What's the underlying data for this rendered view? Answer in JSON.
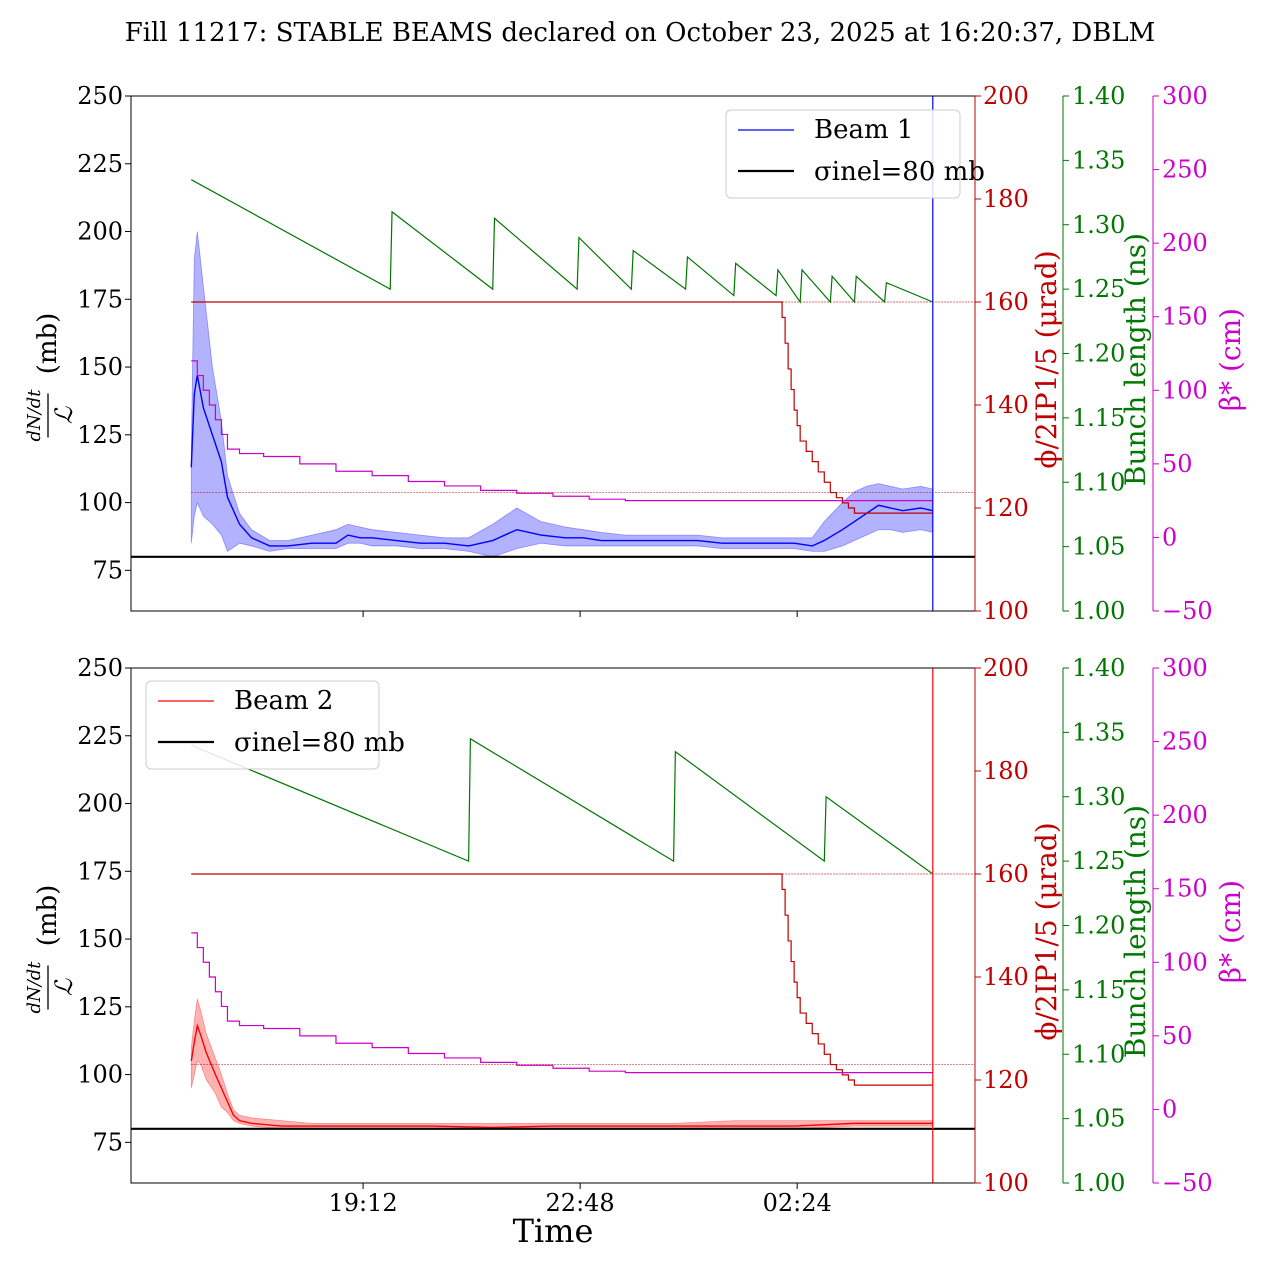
{
  "title": "Fill 11217: STABLE BEAMS declared on October 23, 2025 at 16:20:37, DBLM",
  "xlabel": "Time",
  "x_tick_labels": [
    "19:12",
    "22:48",
    "02:24"
  ],
  "colors": {
    "beam1": "#0000ff",
    "beam2": "#ff0000",
    "sigma": "#000000",
    "crossing_angle": "#c00000",
    "bunch_length": "#007700",
    "beta_star": "#cc00cc"
  },
  "chart_data": [
    {
      "type": "line",
      "panel": "top",
      "x_unit": "hours since 16:20:37",
      "y_left": {
        "label_num": "dN/dt",
        "label_den": "ℒ",
        "unit": "(mb)",
        "ticks": [
          "75",
          "100",
          "125",
          "150",
          "175",
          "200",
          "225",
          "250"
        ],
        "ylim": [
          60,
          250
        ]
      },
      "y_right_1": {
        "label": "ϕ/2IP1/5 (μrad)",
        "ticks": [
          "100",
          "120",
          "140",
          "160",
          "180",
          "200"
        ],
        "ylim": [
          100,
          200
        ]
      },
      "y_right_2": {
        "label": "Bunch length (ns)",
        "ticks": [
          "1.00",
          "1.05",
          "1.10",
          "1.15",
          "1.20",
          "1.25",
          "1.30",
          "1.35",
          "1.40"
        ],
        "ylim": [
          1.0,
          1.4
        ]
      },
      "y_right_3": {
        "label": "β* (cm)",
        "ticks": [
          "−50",
          "0",
          "50",
          "100",
          "150",
          "200",
          "250",
          "300"
        ],
        "ylim": [
          -50,
          300
        ]
      },
      "legend": {
        "location": "top-right",
        "entries": [
          "Beam 1",
          "σinel=80 mb"
        ]
      },
      "sigma_inel_mb": 80,
      "series": [
        {
          "name": "Beam 1",
          "axis": "left",
          "x": [
            0,
            0.05,
            0.1,
            0.2,
            0.35,
            0.5,
            0.6,
            0.8,
            1.0,
            1.3,
            1.6,
            2.0,
            2.4,
            2.6,
            2.8,
            3.0,
            3.4,
            3.8,
            4.2,
            4.6,
            5.0,
            5.4,
            5.8,
            6.2,
            6.5,
            6.8,
            7.2,
            7.6,
            8.0,
            8.4,
            8.8,
            9.2,
            9.6,
            10.0,
            10.3,
            10.5,
            10.8,
            11.0,
            11.2,
            11.4,
            11.6,
            11.8,
            12.1,
            12.3
          ],
          "y": [
            113,
            140,
            147,
            135,
            125,
            115,
            102,
            92,
            87,
            84,
            84,
            85,
            85,
            88,
            87,
            87,
            86,
            85,
            85,
            84,
            86,
            90,
            88,
            87,
            87,
            86,
            86,
            86,
            86,
            86,
            85,
            85,
            85,
            85,
            84,
            86,
            90,
            93,
            96,
            99,
            98,
            97,
            98,
            97
          ],
          "band_upper": [
            120,
            190,
            200,
            180,
            150,
            130,
            110,
            96,
            90,
            86,
            86,
            88,
            90,
            92,
            91,
            90,
            89,
            88,
            87,
            87,
            92,
            98,
            93,
            91,
            90,
            89,
            88,
            88,
            88,
            88,
            87,
            87,
            87,
            87,
            87,
            93,
            100,
            104,
            106,
            107,
            106,
            105,
            106,
            105
          ],
          "band_lower": [
            85,
            95,
            100,
            95,
            92,
            88,
            82,
            85,
            84,
            82,
            83,
            83,
            83,
            85,
            85,
            84,
            84,
            83,
            83,
            82,
            80,
            83,
            85,
            84,
            84,
            84,
            84,
            84,
            84,
            84,
            83,
            83,
            83,
            83,
            82,
            82,
            84,
            86,
            88,
            90,
            90,
            89,
            90,
            89
          ]
        },
        {
          "name": "σinel=80 mb",
          "axis": "left",
          "x": [
            -1.0,
            13.0
          ],
          "y": [
            80,
            80
          ]
        },
        {
          "name": "crossing angle",
          "axis": "right_1",
          "x": [
            0,
            9.7,
            9.8,
            9.85,
            9.9,
            9.95,
            10.0,
            10.05,
            10.1,
            10.2,
            10.3,
            10.4,
            10.5,
            10.6,
            10.7,
            10.8,
            10.9,
            11.0,
            12.3
          ],
          "y": [
            160,
            160,
            157,
            152,
            147,
            143,
            139,
            136,
            133,
            131,
            129,
            127,
            125,
            123,
            122,
            121,
            120,
            119,
            119
          ]
        },
        {
          "name": "bunch length",
          "axis": "right_2",
          "x": [
            0,
            3.3,
            3.33,
            5.0,
            5.03,
            6.4,
            6.43,
            7.3,
            7.33,
            8.2,
            8.23,
            9.0,
            9.03,
            9.7,
            9.73,
            10.1,
            10.13,
            10.6,
            10.63,
            11.0,
            11.03,
            11.5,
            11.53,
            12.3
          ],
          "y": [
            1.335,
            1.25,
            1.31,
            1.25,
            1.305,
            1.25,
            1.29,
            1.25,
            1.28,
            1.25,
            1.275,
            1.245,
            1.27,
            1.245,
            1.265,
            1.24,
            1.265,
            1.24,
            1.26,
            1.24,
            1.26,
            1.24,
            1.255,
            1.24
          ]
        },
        {
          "name": "beta star",
          "axis": "right_3",
          "x": [
            0,
            0.1,
            0.2,
            0.3,
            0.4,
            0.5,
            0.6,
            0.8,
            1.2,
            1.8,
            2.4,
            3.0,
            3.6,
            4.2,
            4.8,
            5.4,
            6.0,
            6.6,
            7.2,
            7.8,
            8.4,
            9.0,
            9.6,
            10.2,
            10.8,
            12.3
          ],
          "y": [
            120,
            110,
            100,
            90,
            80,
            70,
            60,
            57,
            55,
            50,
            45,
            42,
            38,
            35,
            32,
            30,
            28,
            26,
            25,
            25,
            25,
            25,
            25,
            25,
            25,
            25
          ]
        },
        {
          "name": "crossing ref 160",
          "axis": "right_1",
          "x": [
            0,
            13.0
          ],
          "y": [
            160,
            160
          ]
        },
        {
          "name": "crossing ref 123",
          "axis": "right_1",
          "x": [
            0,
            13.0
          ],
          "y": [
            123,
            123
          ]
        }
      ],
      "markers": [
        {
          "axis": "right_2",
          "x": 12.3,
          "line": "vertical"
        }
      ]
    },
    {
      "type": "line",
      "panel": "bottom",
      "x_unit": "hours since 16:20:37",
      "y_left": {
        "label_num": "dN/dt",
        "label_den": "ℒ",
        "unit": "(mb)",
        "ticks": [
          "75",
          "100",
          "125",
          "150",
          "175",
          "200",
          "225",
          "250"
        ],
        "ylim": [
          60,
          250
        ]
      },
      "y_right_1": {
        "label": "ϕ/2IP1/5 (μrad)",
        "ticks": [
          "100",
          "120",
          "140",
          "160",
          "180",
          "200"
        ],
        "ylim": [
          100,
          200
        ]
      },
      "y_right_2": {
        "label": "Bunch length (ns)",
        "ticks": [
          "1.00",
          "1.05",
          "1.10",
          "1.15",
          "1.20",
          "1.25",
          "1.30",
          "1.35",
          "1.40"
        ],
        "ylim": [
          1.0,
          1.4
        ]
      },
      "y_right_3": {
        "label": "β* (cm)",
        "ticks": [
          "−50",
          "0",
          "50",
          "100",
          "150",
          "200",
          "250",
          "300"
        ],
        "ylim": [
          -50,
          300
        ]
      },
      "legend": {
        "location": "top-left",
        "entries": [
          "Beam 2",
          "σinel=80 mb"
        ]
      },
      "sigma_inel_mb": 80,
      "series": [
        {
          "name": "Beam 2",
          "axis": "left",
          "x": [
            0,
            0.05,
            0.1,
            0.15,
            0.25,
            0.4,
            0.5,
            0.6,
            0.7,
            0.8,
            1.0,
            1.5,
            2.0,
            3.0,
            4.0,
            5.0,
            6.0,
            7.0,
            8.0,
            9.0,
            10.0,
            11.0,
            12.3
          ],
          "y": [
            105,
            112,
            118,
            115,
            108,
            100,
            95,
            90,
            85,
            83,
            82,
            81,
            81,
            81,
            81,
            80.5,
            81,
            81,
            81,
            81,
            81,
            82,
            82
          ],
          "band_upper": [
            110,
            120,
            128,
            124,
            115,
            106,
            100,
            93,
            87,
            85,
            84,
            83,
            82,
            82,
            82,
            82,
            82,
            82,
            82,
            83,
            83,
            83,
            83
          ],
          "band_lower": [
            95,
            100,
            105,
            104,
            98,
            93,
            88,
            86,
            83,
            82,
            81,
            80,
            80,
            80,
            80,
            80,
            80,
            80,
            80,
            80,
            80,
            81,
            81
          ]
        },
        {
          "name": "σinel=80 mb",
          "axis": "left",
          "x": [
            -1.0,
            13.0
          ],
          "y": [
            80,
            80
          ]
        },
        {
          "name": "crossing angle",
          "axis": "right_1",
          "x": [
            0,
            9.7,
            9.8,
            9.85,
            9.9,
            9.95,
            10.0,
            10.05,
            10.1,
            10.2,
            10.3,
            10.4,
            10.5,
            10.6,
            10.7,
            10.8,
            10.9,
            11.0,
            12.3
          ],
          "y": [
            160,
            160,
            157,
            152,
            147,
            143,
            139,
            136,
            133,
            131,
            129,
            127,
            125,
            123,
            122,
            121,
            120,
            119,
            119
          ]
        },
        {
          "name": "bunch length",
          "axis": "right_2",
          "x": [
            0,
            4.6,
            4.63,
            8.0,
            8.03,
            10.5,
            10.53,
            12.3
          ],
          "y": [
            1.34,
            1.25,
            1.345,
            1.25,
            1.335,
            1.25,
            1.3,
            1.24
          ]
        },
        {
          "name": "beta star",
          "axis": "right_3",
          "x": [
            0,
            0.1,
            0.2,
            0.3,
            0.4,
            0.5,
            0.6,
            0.8,
            1.2,
            1.8,
            2.4,
            3.0,
            3.6,
            4.2,
            4.8,
            5.4,
            6.0,
            6.6,
            7.2,
            7.8,
            8.4,
            9.0,
            9.6,
            10.2,
            10.8,
            12.3
          ],
          "y": [
            120,
            110,
            100,
            90,
            80,
            70,
            60,
            57,
            55,
            50,
            45,
            42,
            38,
            35,
            32,
            30,
            28,
            26,
            25,
            25,
            25,
            25,
            25,
            25,
            25,
            25
          ]
        },
        {
          "name": "crossing ref 160",
          "axis": "right_1",
          "x": [
            0,
            13.0
          ],
          "y": [
            160,
            160
          ]
        },
        {
          "name": "crossing ref 123",
          "axis": "right_1",
          "x": [
            0,
            13.0
          ],
          "y": [
            123,
            123
          ]
        }
      ],
      "markers": [
        {
          "axis": "right_2",
          "x": 12.3,
          "line": "vertical"
        }
      ]
    }
  ]
}
